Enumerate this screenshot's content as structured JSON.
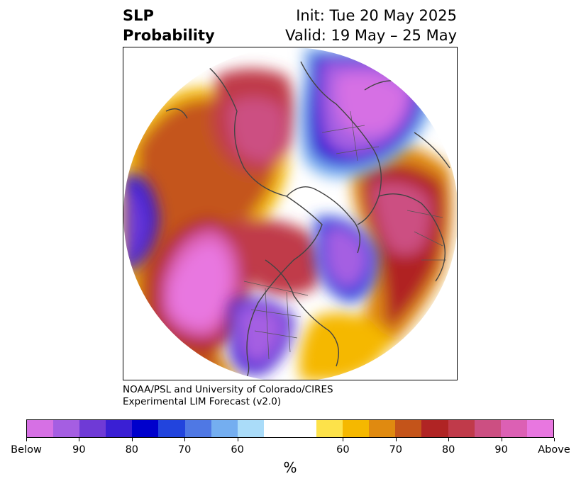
{
  "title": {
    "left_line1": "SLP",
    "left_line2": "Probability",
    "right_line1": "Init: Tue 20 May 2025",
    "right_line2": "Valid: 19 May – 25 May"
  },
  "credit": {
    "line1": "NOAA/PSL and University of Colorado/CIRES",
    "line2": "Experimental LIM Forecast (v2.0)"
  },
  "map": {
    "projection": "north-polar-stereographic",
    "field": "sea level pressure tercile probability",
    "ocean_color": "#ffffff",
    "coast_color": "#444444"
  },
  "colorbar": {
    "unit": "%",
    "colors": [
      "#d670e4",
      "#a55ee2",
      "#6f3ad6",
      "#3a1fd4",
      "#0000cc",
      "#2244dd",
      "#4f78e4",
      "#74aef0",
      "#aadcf9",
      "#ffffff",
      "#ffffff",
      "#fde24a",
      "#f5b800",
      "#e08a10",
      "#c4541a",
      "#b02424",
      "#c03a4a",
      "#cc4f82",
      "#dc60b4",
      "#e877e0"
    ],
    "tick_labels": [
      "Below",
      "90",
      "80",
      "70",
      "60",
      "60",
      "70",
      "80",
      "90",
      "Above"
    ]
  }
}
